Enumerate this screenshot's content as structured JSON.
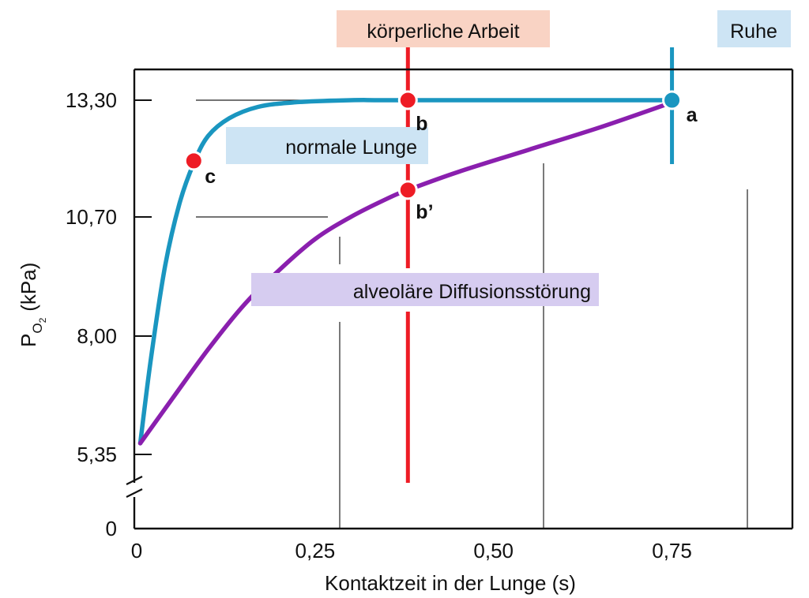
{
  "chart_data": {
    "type": "line",
    "xlabel": "Kontaktzeit in der Lunge (s)",
    "ylabel": "P",
    "ylabel_subscript": "O2",
    "ylabel_unit": "(kPa)",
    "xlim": [
      0,
      0.8
    ],
    "x_ticks": [
      {
        "value": 0,
        "label": "0"
      },
      {
        "value": 0.25,
        "label": "0,25"
      },
      {
        "value": 0.5,
        "label": "0,50"
      },
      {
        "value": 0.75,
        "label": "0,75"
      }
    ],
    "y_ticks": [
      {
        "value": 0,
        "label": "0"
      },
      {
        "value": 5.35,
        "label": "5,35"
      },
      {
        "value": 8.0,
        "label": "8,00"
      },
      {
        "value": 10.7,
        "label": "10,70"
      },
      {
        "value": 13.3,
        "label": "13,30"
      }
    ],
    "y_axis_break": true,
    "series": [
      {
        "name": "normale Lunge",
        "color": "#1a96c0",
        "label_bg": "#cde4f4",
        "points": [
          [
            0.005,
            5.6
          ],
          [
            0.02,
            7.5
          ],
          [
            0.04,
            9.6
          ],
          [
            0.06,
            11.0
          ],
          [
            0.08,
            11.9
          ],
          [
            0.1,
            12.5
          ],
          [
            0.13,
            12.9
          ],
          [
            0.17,
            13.15
          ],
          [
            0.22,
            13.25
          ],
          [
            0.3,
            13.3
          ],
          [
            0.38,
            13.3
          ],
          [
            0.75,
            13.3
          ]
        ]
      },
      {
        "name": "alveoläre Diffusionsstörung",
        "color": "#8a1fae",
        "label_bg": "#d6ccf0",
        "points": [
          [
            0.005,
            5.6
          ],
          [
            0.05,
            6.6
          ],
          [
            0.1,
            7.7
          ],
          [
            0.15,
            8.7
          ],
          [
            0.2,
            9.5
          ],
          [
            0.25,
            10.2
          ],
          [
            0.3,
            10.7
          ],
          [
            0.35,
            11.1
          ],
          [
            0.38,
            11.3
          ],
          [
            0.45,
            11.7
          ],
          [
            0.55,
            12.2
          ],
          [
            0.65,
            12.7
          ],
          [
            0.75,
            13.25
          ]
        ]
      }
    ],
    "markers": [
      {
        "label": "a",
        "x": 0.75,
        "y": 13.3,
        "color": "#1a96c0"
      },
      {
        "label": "b",
        "x": 0.38,
        "y": 13.3,
        "color": "#ee1c25"
      },
      {
        "label": "b’",
        "x": 0.38,
        "y": 11.3,
        "color": "#ee1c25"
      },
      {
        "label": "c",
        "x": 0.08,
        "y": 11.95,
        "color": "#ee1c25"
      }
    ],
    "reference_lines": [
      {
        "label": "körperliche Arbeit",
        "x": 0.38,
        "color": "#ee1c25",
        "label_bg": "#f9d3c4"
      },
      {
        "label": "Ruhe",
        "x": 0.75,
        "color": "#1a96c0",
        "label_bg": "#cde4f4"
      }
    ],
    "grid": false
  }
}
